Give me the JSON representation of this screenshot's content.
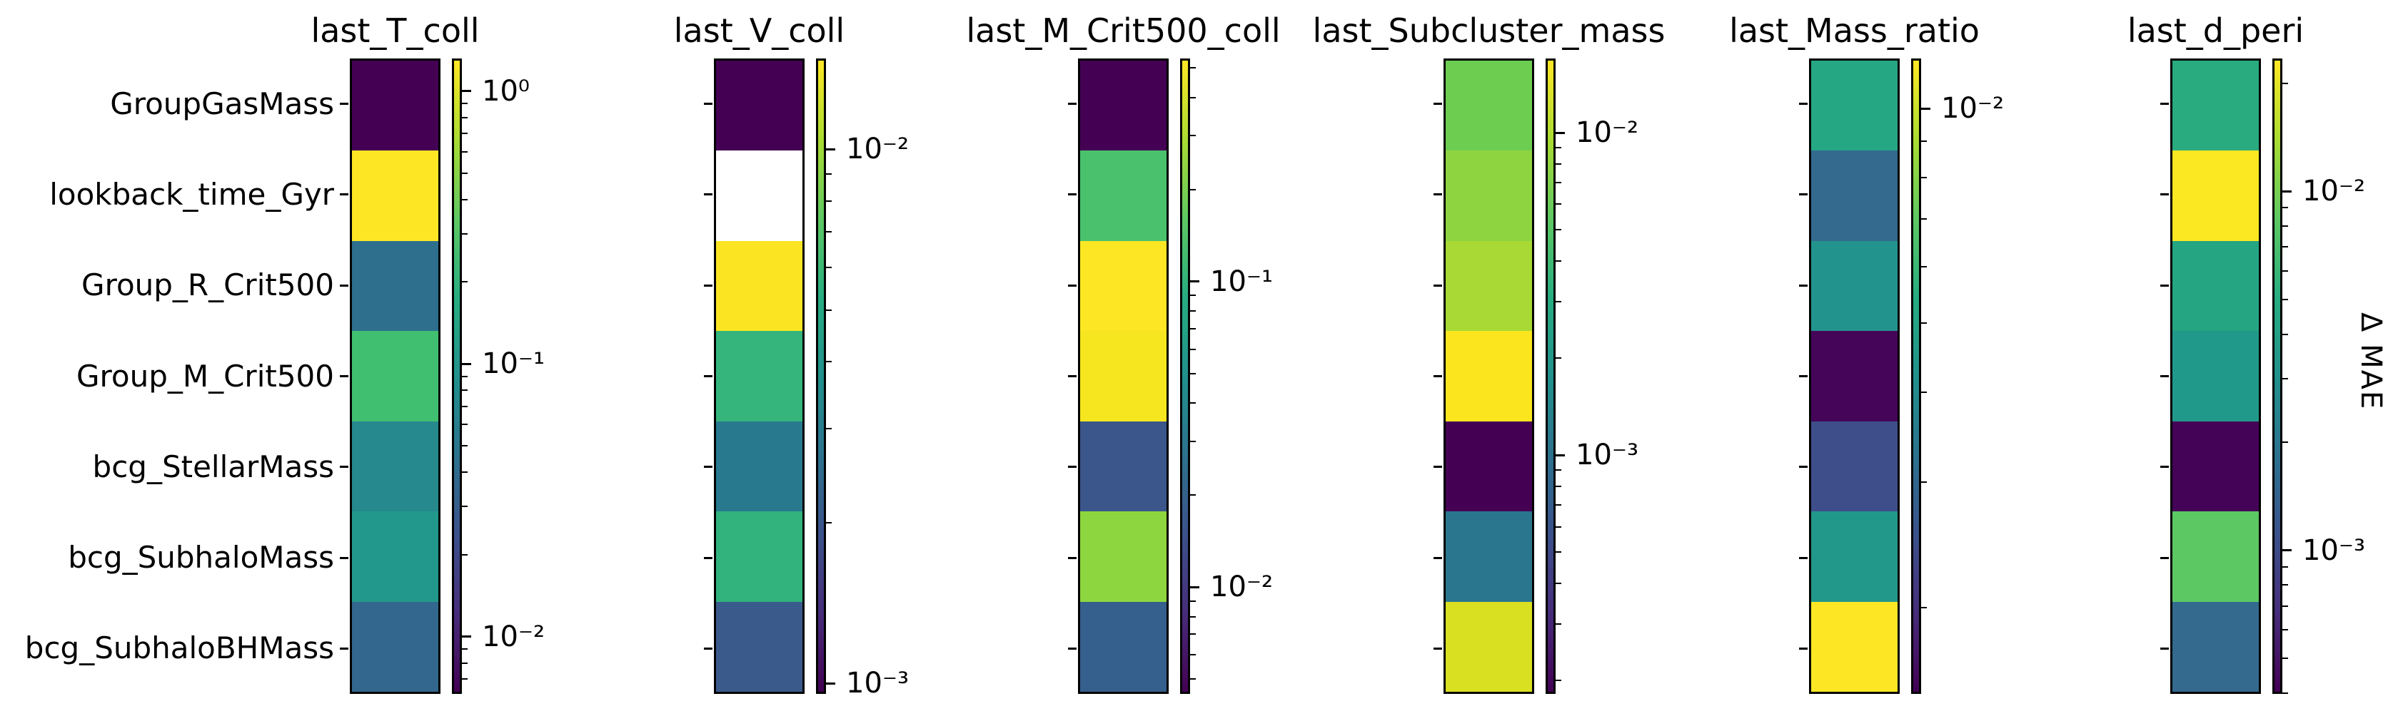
{
  "figure": {
    "background": "#ffffff",
    "text_color": "#000000",
    "colormap": "viridis",
    "scale": "log"
  },
  "chart_data": {
    "type": "heatmap",
    "title": "",
    "right_axis_label": "Δ MAE",
    "legend_position": "per-panel colorbar, right side",
    "grid": false,
    "rows": [
      "GroupGasMass",
      "lookback_time_Gyr",
      "Group_R_Crit500",
      "Group_M_Crit500",
      "bcg_StellarMass",
      "bcg_SubhaloMass",
      "bcg_SubhaloBHMass"
    ],
    "panels": [
      {
        "title": "last_T_coll",
        "colorbar": {
          "log_top": 0.12,
          "log_bottom": -2.21,
          "ticks": [
            {
              "exp": 0,
              "label": "10⁰"
            },
            {
              "exp": -1,
              "label": "10⁻¹"
            },
            {
              "exp": -2,
              "label": "10⁻²"
            }
          ]
        },
        "cells": [
          {
            "row": "GroupGasMass",
            "color": "#440154",
            "value_est": 0.0062
          },
          {
            "row": "lookback_time_Gyr",
            "color": "#fde725",
            "value_est": 1.3
          },
          {
            "row": "Group_R_Crit500",
            "color": "#2e6f8e",
            "value_est": 0.036
          },
          {
            "row": "Group_M_Crit500",
            "color": "#41bf70",
            "value_est": 0.26
          },
          {
            "row": "bcg_StellarMass",
            "color": "#26898e",
            "value_est": 0.062
          },
          {
            "row": "bcg_SubhaloMass",
            "color": "#21988b",
            "value_est": 0.11
          },
          {
            "row": "bcg_SubhaloBHMass",
            "color": "#33678d",
            "value_est": 0.031
          }
        ]
      },
      {
        "title": "last_V_coll",
        "colorbar": {
          "log_top": -1.83,
          "log_bottom": -3.02,
          "ticks": [
            {
              "exp": -2,
              "label": "10⁻²"
            },
            {
              "exp": -3,
              "label": "10⁻³"
            }
          ]
        },
        "cells": [
          {
            "row": "GroupGasMass",
            "color": "#440154",
            "value_est": 0.00095
          },
          {
            "row": "lookback_time_Gyr",
            "color": "#ffffff",
            "value_est": null
          },
          {
            "row": "Group_R_Crit500",
            "color": "#fbe522",
            "value_est": 0.015
          },
          {
            "row": "Group_M_Crit500",
            "color": "#35b57c",
            "value_est": 0.0059
          },
          {
            "row": "bcg_StellarMass",
            "color": "#28788e",
            "value_est": 0.0027
          },
          {
            "row": "bcg_SubhaloMass",
            "color": "#32b27d",
            "value_est": 0.0055
          },
          {
            "row": "bcg_SubhaloBHMass",
            "color": "#3a5a8c",
            "value_est": 0.002
          }
        ]
      },
      {
        "title": "last_M_Crit500_coll",
        "colorbar": {
          "log_top": -0.27,
          "log_bottom": -2.35,
          "ticks": [
            {
              "exp": -1,
              "label": "10⁻¹"
            },
            {
              "exp": -2,
              "label": "10⁻²"
            }
          ]
        },
        "cells": [
          {
            "row": "GroupGasMass",
            "color": "#440154",
            "value_est": 0.0044
          },
          {
            "row": "lookback_time_Gyr",
            "color": "#4ac16d",
            "value_est": 0.14
          },
          {
            "row": "Group_R_Crit500",
            "color": "#fde725",
            "value_est": 0.54
          },
          {
            "row": "Group_M_Crit500",
            "color": "#f5e61f",
            "value_est": 0.49
          },
          {
            "row": "bcg_StellarMass",
            "color": "#3b568b",
            "value_est": 0.016
          },
          {
            "row": "bcg_SubhaloMass",
            "color": "#8ed63f",
            "value_est": 0.26
          },
          {
            "row": "bcg_SubhaloBHMass",
            "color": "#355f8d",
            "value_est": 0.019
          }
        ]
      },
      {
        "title": "last_Subcluster_mass",
        "colorbar": {
          "log_top": -1.77,
          "log_bottom": -3.74,
          "ticks": [
            {
              "exp": -2,
              "label": "10⁻²"
            },
            {
              "exp": -3,
              "label": "10⁻³"
            }
          ]
        },
        "cells": [
          {
            "row": "GroupGasMass",
            "color": "#6ccd51",
            "value_est": 0.006
          },
          {
            "row": "lookback_time_Gyr",
            "color": "#8ed440",
            "value_est": 0.0083
          },
          {
            "row": "Group_R_Crit500",
            "color": "#a8d934",
            "value_est": 0.0098
          },
          {
            "row": "Group_M_Crit500",
            "color": "#fbe51e",
            "value_est": 0.017
          },
          {
            "row": "bcg_StellarMass",
            "color": "#440154",
            "value_est": 0.00018
          },
          {
            "row": "bcg_SubhaloMass",
            "color": "#2a768e",
            "value_est": 0.001
          },
          {
            "row": "bcg_SubhaloBHMass",
            "color": "#d9e021",
            "value_est": 0.012
          }
        ]
      },
      {
        "title": "last_Mass_ratio",
        "colorbar": {
          "log_top": -1.93,
          "log_bottom": -2.82,
          "ticks": [
            {
              "exp": -2,
              "label": "10⁻²"
            }
          ]
        },
        "cells": [
          {
            "row": "GroupGasMass",
            "color": "#26a784",
            "value_est": 0.0052
          },
          {
            "row": "lookback_time_Gyr",
            "color": "#336a8e",
            "value_est": 0.0029
          },
          {
            "row": "Group_R_Crit500",
            "color": "#23948d",
            "value_est": 0.0044
          },
          {
            "row": "Group_M_Crit500",
            "color": "#45065a",
            "value_est": 0.0016
          },
          {
            "row": "bcg_StellarMass",
            "color": "#3e4e8a",
            "value_est": 0.0025
          },
          {
            "row": "bcg_SubhaloMass",
            "color": "#22988b",
            "value_est": 0.0047
          },
          {
            "row": "bcg_SubhaloBHMass",
            "color": "#fde725",
            "value_est": 0.012
          }
        ]
      },
      {
        "title": "last_d_peri",
        "colorbar": {
          "log_top": -1.63,
          "log_bottom": -3.4,
          "ticks": [
            {
              "exp": -2,
              "label": "10⁻²"
            },
            {
              "exp": -3,
              "label": "10⁻³"
            }
          ]
        },
        "cells": [
          {
            "row": "GroupGasMass",
            "color": "#2aab7f",
            "value_est": 0.005
          },
          {
            "row": "lookback_time_Gyr",
            "color": "#fbe722",
            "value_est": 0.023
          },
          {
            "row": "Group_R_Crit500",
            "color": "#26a583",
            "value_est": 0.0042
          },
          {
            "row": "Group_M_Crit500",
            "color": "#21998a",
            "value_est": 0.0035
          },
          {
            "row": "bcg_StellarMass",
            "color": "#440357",
            "value_est": 0.00041
          },
          {
            "row": "bcg_SubhaloMass",
            "color": "#5cc863",
            "value_est": 0.0085
          },
          {
            "row": "bcg_SubhaloBHMass",
            "color": "#336a8e",
            "value_est": 0.0015
          }
        ]
      }
    ]
  }
}
